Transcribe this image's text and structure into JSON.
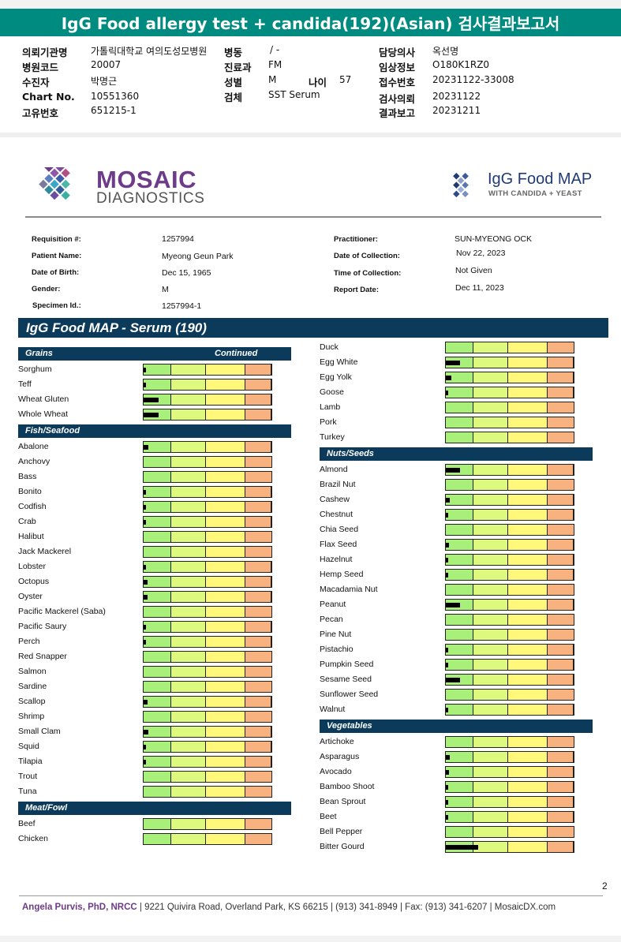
{
  "banner": {
    "title": "IgG Food allergy test + candida(192)(Asian) 검사결과보고서"
  },
  "korean_info": {
    "rows": [
      {
        "l1": "의뢰기관명",
        "v1": "가톨릭대학교 여의도성모병원",
        "l2": "병동",
        "v2": "/ -",
        "l3": "담당의사",
        "v3": "옥선명"
      },
      {
        "l1": "병원코드",
        "v1": "20007",
        "l2": "진료과",
        "v2": "FM",
        "l3": "임상정보",
        "v3": "O180K1RZ0"
      },
      {
        "l1": "수진자",
        "v1": "박명근",
        "l2": "성별",
        "v2": "M",
        "l3": "접수번호",
        "v3": "20231122-33008"
      },
      {
        "l1": "Chart No.",
        "v1": "10551360",
        "l2": "검체",
        "v2": "SST Serum",
        "l3": "검사의뢰",
        "v3": "20231122"
      },
      {
        "l1": "고유번호",
        "v1": "651215-1",
        "l2": "",
        "v2": "",
        "l3": "결과보고",
        "v3": "20231211"
      }
    ],
    "age_label": "나이",
    "age_value": "57"
  },
  "logos": {
    "mosaic_line1": "MOSAIC",
    "mosaic_line2": "DIAGNOSTICS",
    "product_line1": "IgG Food MAP",
    "product_line2": "WITH CANDIDA + YEAST"
  },
  "patient": {
    "requisition_label": "Requisition #:",
    "requisition": "1257994",
    "name_label": "Patient Name:",
    "name": "Myeong Geun Park",
    "dob_label": "Date of Birth:",
    "dob": "Dec 15, 1965",
    "gender_label": "Gender:",
    "gender": "M",
    "specimen_label": "Specimen Id.:",
    "specimen": "1257994-1",
    "practitioner_label": "Practitioner:",
    "practitioner": "SUN-MYEONG OCK",
    "collection_label": "Date of Collection:",
    "collection": "Nov 22, 2023",
    "time_label": "Time of Collection:",
    "time": "Not Given",
    "report_label": "Report Date:",
    "report": "Dec 11, 2023"
  },
  "map_title": "IgG Food MAP - Serum (190)",
  "left_column": [
    {
      "category": "Grains",
      "continued": "Continued",
      "items": [
        {
          "name": "Sorghum",
          "level": 0.02
        },
        {
          "name": "Teff",
          "level": 0.015
        },
        {
          "name": "Wheat Gluten",
          "level": 0.12
        },
        {
          "name": "Whole Wheat",
          "level": 0.12
        }
      ]
    },
    {
      "category": "Fish/Seafood",
      "items": [
        {
          "name": "Abalone",
          "level": 0.04
        },
        {
          "name": "Anchovy",
          "level": 0
        },
        {
          "name": "Bass",
          "level": 0
        },
        {
          "name": "Bonito",
          "level": 0.01
        },
        {
          "name": "Codfish",
          "level": 0.01
        },
        {
          "name": "Crab",
          "level": 0.015
        },
        {
          "name": "Halibut",
          "level": 0
        },
        {
          "name": "Jack Mackerel",
          "level": 0
        },
        {
          "name": "Lobster",
          "level": 0.01
        },
        {
          "name": "Octopus",
          "level": 0.03
        },
        {
          "name": "Oyster",
          "level": 0.03
        },
        {
          "name": "Pacific Mackerel (Saba)",
          "level": 0
        },
        {
          "name": "Pacific Saury",
          "level": 0.01
        },
        {
          "name": "Perch",
          "level": 0.02
        },
        {
          "name": "Red Snapper",
          "level": 0
        },
        {
          "name": "Salmon",
          "level": 0
        },
        {
          "name": "Sardine",
          "level": 0
        },
        {
          "name": "Scallop",
          "level": 0.03
        },
        {
          "name": "Shrimp",
          "level": 0
        },
        {
          "name": "Small Clam",
          "level": 0.035
        },
        {
          "name": "Squid",
          "level": 0.02
        },
        {
          "name": "Tilapia",
          "level": 0.01
        },
        {
          "name": "Trout",
          "level": 0
        },
        {
          "name": "Tuna",
          "level": 0
        }
      ]
    },
    {
      "category": "Meat/Fowl",
      "items": [
        {
          "name": "Beef",
          "level": 0
        },
        {
          "name": "Chicken",
          "level": 0
        }
      ]
    }
  ],
  "right_column": [
    {
      "category": "",
      "items": [
        {
          "name": "Duck",
          "level": 0
        },
        {
          "name": "Egg White",
          "level": 0.11
        },
        {
          "name": "Egg Yolk",
          "level": 0.045
        },
        {
          "name": "Goose",
          "level": 0.01
        },
        {
          "name": "Lamb",
          "level": 0
        },
        {
          "name": "Pork",
          "level": 0
        },
        {
          "name": "Turkey",
          "level": 0
        }
      ]
    },
    {
      "category": "Nuts/Seeds",
      "items": [
        {
          "name": "Almond",
          "level": 0.11
        },
        {
          "name": "Brazil Nut",
          "level": 0
        },
        {
          "name": "Cashew",
          "level": 0.03
        },
        {
          "name": "Chestnut",
          "level": 0.01
        },
        {
          "name": "Chia Seed",
          "level": 0
        },
        {
          "name": "Flax Seed",
          "level": 0.025
        },
        {
          "name": "Hazelnut",
          "level": 0.01
        },
        {
          "name": "Hemp Seed",
          "level": 0.015
        },
        {
          "name": "Macadamia Nut",
          "level": 0
        },
        {
          "name": "Peanut",
          "level": 0.11
        },
        {
          "name": "Pecan",
          "level": 0
        },
        {
          "name": "Pine Nut",
          "level": 0
        },
        {
          "name": "Pistachio",
          "level": 0.01
        },
        {
          "name": "Pumpkin Seed",
          "level": 0.01
        },
        {
          "name": "Sesame Seed",
          "level": 0.11
        },
        {
          "name": "Sunflower Seed",
          "level": 0
        },
        {
          "name": "Walnut",
          "level": 0.015
        }
      ]
    },
    {
      "category": "Vegetables",
      "items": [
        {
          "name": "Artichoke",
          "level": 0
        },
        {
          "name": "Asparagus",
          "level": 0.03
        },
        {
          "name": "Avocado",
          "level": 0.025
        },
        {
          "name": "Bamboo Shoot",
          "level": 0.01
        },
        {
          "name": "Bean Sprout",
          "level": 0.02
        },
        {
          "name": "Beet",
          "level": 0.015
        },
        {
          "name": "Bell Pepper",
          "level": 0
        },
        {
          "name": "Bitter Gourd",
          "level": 0.25
        }
      ]
    }
  ],
  "page_number": "2",
  "footer": {
    "name": "Angela Purvis, PhD, NRCC",
    "rest": "| 9221 Quivira Road, Overland Park, KS 66215  |  (913) 341-8949  |  Fax: (913) 341-6207 | MosaicDX.com"
  },
  "colors": {
    "banner": "#008b80",
    "navy": "#0b3a5b",
    "green": "#a8f07a",
    "lime": "#ddfa7e",
    "yellow": "#fff87a",
    "orange": "#f8b27f",
    "brand_purple": "#6d3b87"
  }
}
